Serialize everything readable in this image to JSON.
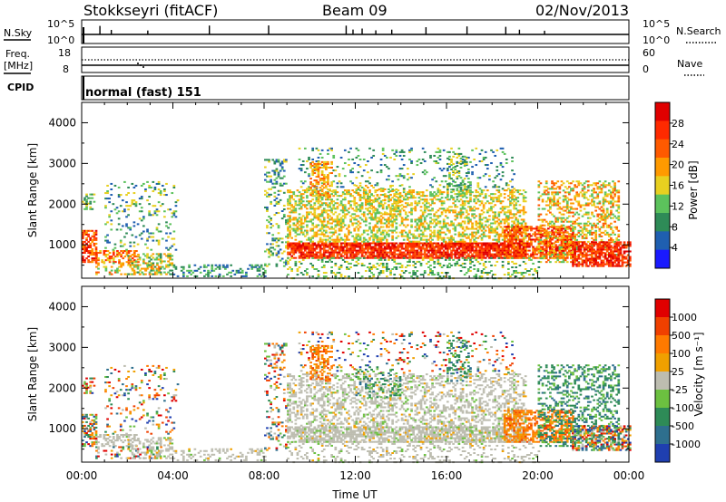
{
  "header": {
    "station": "Stokkseyri (fitACF)",
    "beam": "Beam 09",
    "date": "02/Nov/2013"
  },
  "top_panels": {
    "nsky_label": "N.Sky",
    "nsky_ticks": [
      "10^5",
      "10^0"
    ],
    "nsearch_label": "N.Search",
    "nsearch_ticks": [
      "10^5",
      "10^0"
    ],
    "freq_label_line1": "Freq.",
    "freq_label_line2": "[MHz]",
    "freq_ticks": [
      "18",
      "8"
    ],
    "nave_label": "Nave",
    "nave_ticks": [
      "60",
      "0"
    ],
    "cpid_label": "CPID",
    "cpid_value": "normal (fast) 151"
  },
  "chart_data": [
    {
      "type": "heatmap",
      "title": "Power",
      "ylabel": "Slant Range [km]",
      "xlabel": "",
      "ylim": [
        180,
        4500
      ],
      "y_ticks": [
        1000,
        2000,
        3000,
        4000
      ],
      "x_ticks": [
        "00:00",
        "04:00",
        "08:00",
        "12:00",
        "16:00",
        "20:00",
        "00:00"
      ],
      "colorbar": {
        "label": "Power [dB]",
        "ticks": [
          "4",
          "8",
          "12",
          "16",
          "20",
          "24",
          "28"
        ],
        "colors": [
          "#1a1aff",
          "#1f5fb0",
          "#2e8b57",
          "#5cc25c",
          "#e8d020",
          "#ff9a00",
          "#ff5a00",
          "#ff2a00",
          "#e00000"
        ]
      }
    },
    {
      "type": "heatmap",
      "title": "Velocity",
      "ylabel": "Slant Range [km]",
      "xlabel": "Time UT",
      "ylim": [
        180,
        4500
      ],
      "y_ticks": [
        1000,
        2000,
        3000,
        4000
      ],
      "x_ticks": [
        "00:00",
        "04:00",
        "08:00",
        "12:00",
        "16:00",
        "20:00",
        "00:00"
      ],
      "colorbar": {
        "label": "Velocity [m s⁻¹]",
        "ticks": [
          "1000",
          "500",
          "100",
          "25",
          "-25",
          "-100",
          "-500",
          "-1000"
        ],
        "colors": [
          "#1f3fb0",
          "#2e6f8e",
          "#2e8b57",
          "#6cc040",
          "#bdbdb0",
          "#f0a000",
          "#ff7a00",
          "#f04000",
          "#e00000"
        ]
      }
    }
  ]
}
